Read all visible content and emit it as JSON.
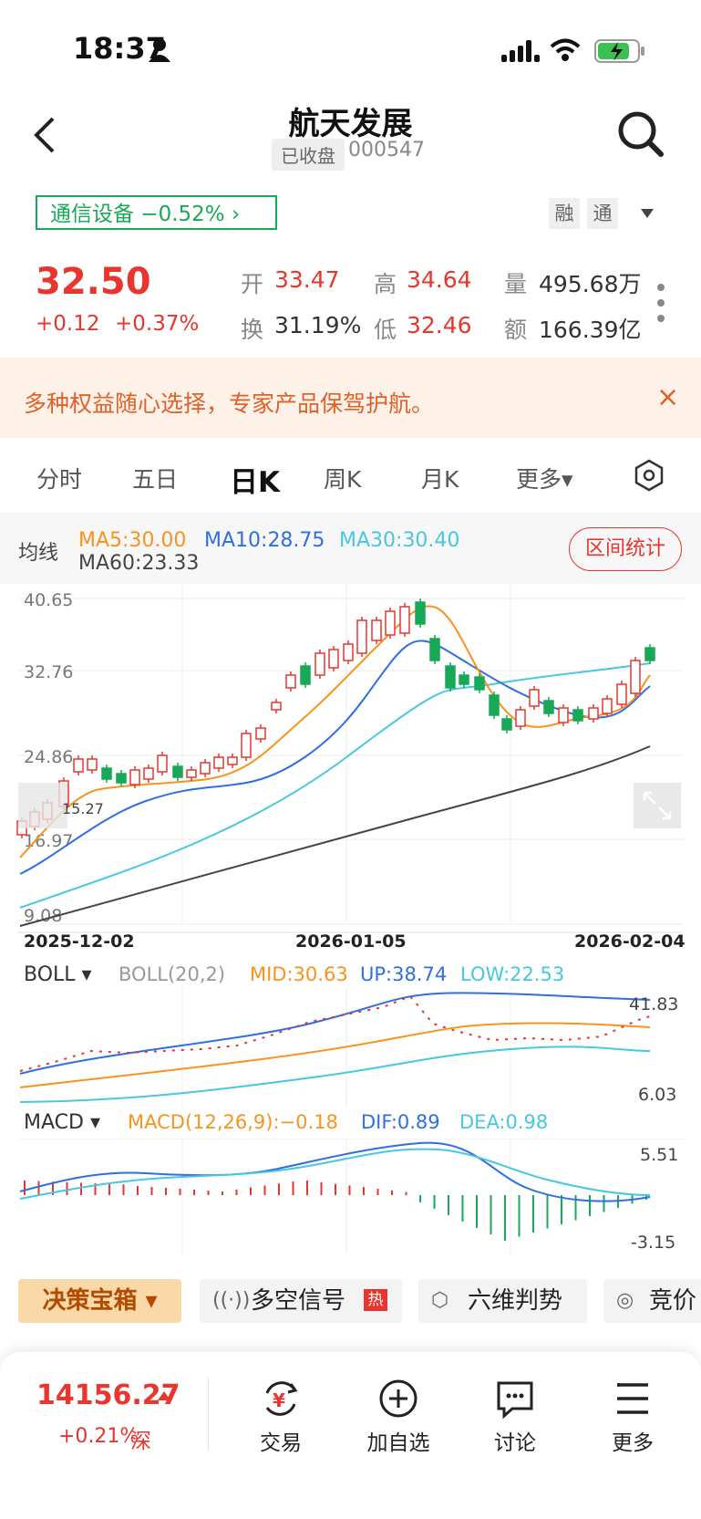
{
  "status_bar": {
    "time": "18:37"
  },
  "header": {
    "title": "航天发展",
    "status_badge": "已收盘",
    "code": "000547"
  },
  "industry": {
    "label": "通信设备 −0.52% ›"
  },
  "pills": {
    "rong": "融",
    "tong": "通"
  },
  "quote": {
    "price": "32.50",
    "change": "+0.12",
    "change_pct": "+0.37%",
    "open_label": "开",
    "open": "33.47",
    "high_label": "高",
    "high": "34.64",
    "volume_label": "量",
    "volume": "495.68万",
    "turnover_label": "换",
    "turnover": "31.19%",
    "low_label": "低",
    "low": "32.46",
    "amount_label": "额",
    "amount": "166.39亿"
  },
  "banner": {
    "text": "多种权益随心选择，专家产品保驾护航。",
    "close": "×"
  },
  "tabs": [
    "分时",
    "五日",
    "日K",
    "周K",
    "月K",
    "更多▾"
  ],
  "ma": {
    "label": "均线",
    "ma5": "MA5:30.00",
    "ma10": "MA10:28.75",
    "ma30": "MA30:30.40",
    "ma60": "MA60:23.33",
    "range_button": "区间统计"
  },
  "kchart": {
    "y_labels": [
      "40.65",
      "32.76",
      "24.86",
      "16.97",
      "9.08"
    ],
    "low_marker": "15.27",
    "x_labels": [
      "2025-12-02",
      "2026-01-05",
      "2026-02-04"
    ]
  },
  "boll": {
    "label": "BOLL ▾",
    "params": "BOLL(20,2)",
    "mid": "MID:30.63",
    "up": "UP:38.74",
    "low": "LOW:22.53",
    "top_value": "41.83",
    "bottom_value": "6.03"
  },
  "macd": {
    "label": "MACD ▾",
    "params": "MACD(12,26,9):−0.18",
    "dif": "DIF:0.89",
    "dea": "DEA:0.98",
    "top_value": "5.51",
    "bottom_value": "-3.15"
  },
  "tools": {
    "decision": "决策宝箱 ▾",
    "long_short": "多空信号",
    "hot": "热",
    "six_dim": "六维判势",
    "bid": "竞价"
  },
  "footer": {
    "index_value": "14156.27",
    "index_change": "+0.21%",
    "index_market": "深",
    "trade": "交易",
    "add_watch": "加自选",
    "discuss": "讨论",
    "more": "更多"
  },
  "colors": {
    "up": "#e8352e",
    "down": "#18a957",
    "ma5": "#f7931e",
    "ma10": "#2f6fdf",
    "ma30": "#47c7e0",
    "ma60": "#444444"
  }
}
